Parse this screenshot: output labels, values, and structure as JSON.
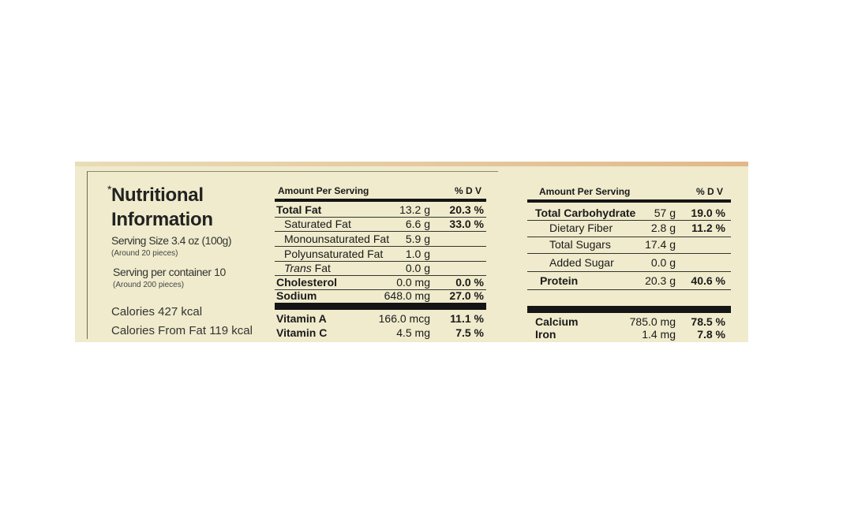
{
  "panel": {
    "title_line1": "Nutritional",
    "title_line2": "Information",
    "asterisk": "*",
    "serving_size": "Serving Size 3.4 oz (100g)",
    "serving_size_note": "(Around 20 pieces)",
    "servings_per_container": "Serving per container 10",
    "servings_note": "(Around 200 pieces)",
    "calories": "Calories 427 kcal",
    "calories_from_fat": "Calories From Fat 119 kcal"
  },
  "left_table": {
    "header": "Amount Per Serving",
    "dv_header": "% D V",
    "rows": [
      {
        "name": "Total Fat",
        "amount": "13.2 g",
        "dv": "20.3 %",
        "bold": true
      },
      {
        "name": "Saturated Fat",
        "amount": "6.6 g",
        "dv": "33.0 %"
      },
      {
        "name": "Monounsaturated Fat",
        "amount": "5.9 g",
        "dv": ""
      },
      {
        "name": "Polyunsaturated Fat",
        "amount": "1.0 g",
        "dv": ""
      },
      {
        "name_italic": "Trans",
        "name": " Fat",
        "amount": "0.0 g",
        "dv": ""
      },
      {
        "name": "Cholesterol",
        "amount": "0.0 mg",
        "dv": "0.0 %",
        "bold": true
      },
      {
        "name": "Sodium",
        "amount": "648.0 mg",
        "dv": "27.0 %",
        "bold": true
      }
    ],
    "vitamins": [
      {
        "name": "Vitamin A",
        "amount": "166.0 mcg",
        "dv": "11.1 %"
      },
      {
        "name": "Vitamin C",
        "amount": "4.5 mg",
        "dv": "7.5 %"
      }
    ]
  },
  "right_table": {
    "header": "Amount Per Serving",
    "dv_header": "% D V",
    "rows": [
      {
        "name": "Total Carbohydrate",
        "amount": "57 g",
        "dv": "19.0 %",
        "bold": true
      },
      {
        "name": "Dietary Fiber",
        "amount": "2.8 g",
        "dv": "11.2 %"
      },
      {
        "name": "Total Sugars",
        "amount": "17.4 g",
        "dv": ""
      },
      {
        "name": "Added Sugar",
        "amount": "0.0 g",
        "dv": ""
      },
      {
        "name": "Protein",
        "amount": "20.3 g",
        "dv": "40.6 %",
        "bold": true
      }
    ],
    "minerals": [
      {
        "name": "Calcium",
        "amount": "785.0 mg",
        "dv": "78.5 %"
      },
      {
        "name": "Iron",
        "amount": "1.4 mg",
        "dv": "7.8 %"
      }
    ]
  },
  "colors": {
    "background": "#efebcc",
    "ink": "#151515"
  }
}
